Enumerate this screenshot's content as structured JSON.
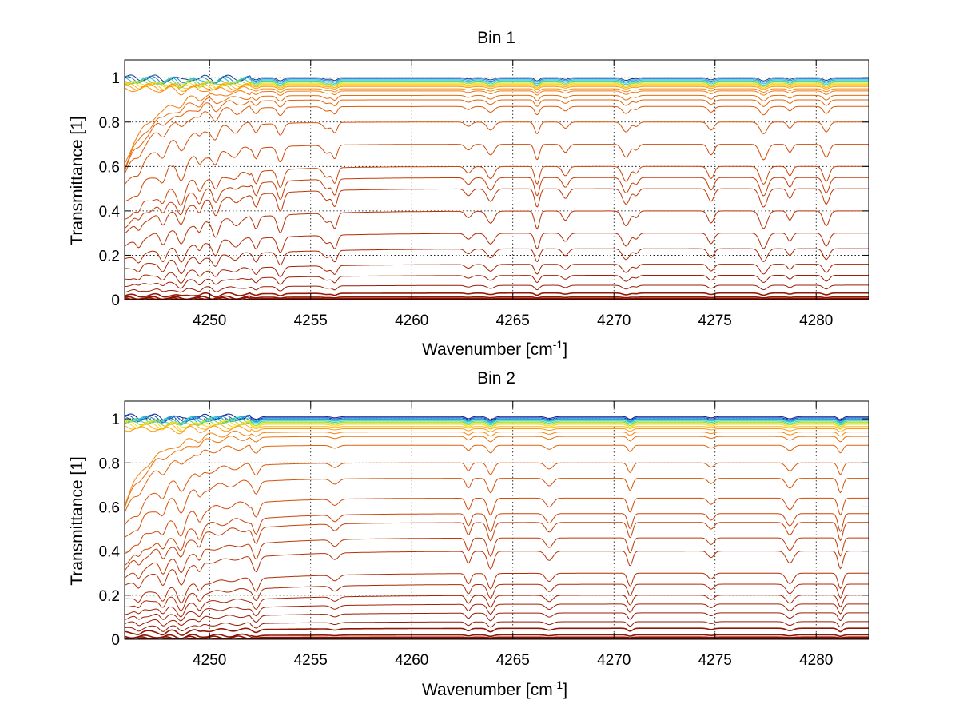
{
  "chart_data": [
    {
      "type": "line",
      "title": "Bin 1",
      "xlabel": "Wavenumber [cm",
      "xlabel_sup": "-1",
      "xlabel_close": "]",
      "ylabel": "Transmittance [1]",
      "xlim": [
        4245.8,
        4282.6
      ],
      "ylim": [
        0,
        1.08
      ],
      "xticks": [
        4250,
        4255,
        4260,
        4265,
        4270,
        4275,
        4280
      ],
      "xtick_labels": [
        "4250",
        "4255",
        "4260",
        "4265",
        "4270",
        "4275",
        "4280"
      ],
      "yticks": [
        0,
        0.2,
        0.4,
        0.6,
        0.8,
        1
      ],
      "ytick_labels": [
        "0",
        "0.2",
        "0.4",
        "0.6",
        "0.8",
        "1"
      ],
      "grid": true,
      "legend": "none",
      "absorption_lines": [
        4246.5,
        4247.7,
        4248.6,
        4249.5,
        4250.3,
        4251.3,
        4252.3,
        4253.5,
        4255.8,
        4256.2,
        4262.8,
        4263.9,
        4266.2,
        4267.6,
        4270.6,
        4271.1,
        4274.8,
        4277.4,
        4278.7,
        4280.5
      ],
      "series_final_transmittance": [
        1.0,
        0.995,
        0.99,
        0.985,
        0.98,
        0.975,
        0.97,
        0.965,
        0.96,
        0.95,
        0.94,
        0.92,
        0.9,
        0.87,
        0.8,
        0.7,
        0.6,
        0.55,
        0.5,
        0.4,
        0.3,
        0.23,
        0.16,
        0.11,
        0.065,
        0.03,
        0.012,
        0.005,
        0.0
      ],
      "series_colors": [
        "#0b3c8c",
        "#1f7fd4",
        "#21b7d6",
        "#3ccf9a",
        "#8fdc3a",
        "#e6e61a",
        "#ffd21a",
        "#ffb31a",
        "#ff9a14",
        "#f78a12",
        "#ef7a10",
        "#e86c0e",
        "#e2640c",
        "#dc5a0b",
        "#d6520a",
        "#d04a09",
        "#ca4408",
        "#c43e08",
        "#be3807",
        "#b83207",
        "#b22d06",
        "#ac2806",
        "#a62405",
        "#a02005",
        "#9a1c05",
        "#961904",
        "#921604",
        "#8e1404",
        "#8a1204"
      ]
    },
    {
      "type": "line",
      "title": "Bin 2",
      "xlabel": "Wavenumber [cm",
      "xlabel_sup": "-1",
      "xlabel_close": "]",
      "ylabel": "Transmittance [1]",
      "xlim": [
        4245.8,
        4282.6
      ],
      "ylim": [
        0,
        1.08
      ],
      "xticks": [
        4250,
        4255,
        4260,
        4265,
        4270,
        4275,
        4280
      ],
      "xtick_labels": [
        "4250",
        "4255",
        "4260",
        "4265",
        "4270",
        "4275",
        "4280"
      ],
      "yticks": [
        0,
        0.2,
        0.4,
        0.6,
        0.8,
        1
      ],
      "ytick_labels": [
        "0",
        "0.2",
        "0.4",
        "0.6",
        "0.8",
        "1"
      ],
      "grid": true,
      "legend": "none",
      "absorption_lines": [
        4246.5,
        4247.7,
        4248.6,
        4249.5,
        4252.3,
        4256.2,
        4262.8,
        4263.9,
        4266.8,
        4270.8,
        4274.8,
        4278.7,
        4281.2
      ],
      "series_final_transmittance": [
        1.01,
        1.005,
        1.0,
        0.998,
        0.995,
        0.99,
        0.985,
        0.98,
        0.975,
        0.965,
        0.955,
        0.94,
        0.92,
        0.88,
        0.8,
        0.73,
        0.64,
        0.57,
        0.53,
        0.46,
        0.4,
        0.3,
        0.25,
        0.2,
        0.16,
        0.12,
        0.08,
        0.05,
        0.02,
        0.01,
        0.0
      ],
      "series_colors": [
        "#0b1f8c",
        "#1246c8",
        "#1f7fd4",
        "#21b7d6",
        "#2fd0c0",
        "#3ccf9a",
        "#8fdc3a",
        "#e6e61a",
        "#ffd21a",
        "#ffb31a",
        "#ff9a14",
        "#f28510",
        "#ea720e",
        "#e2640c",
        "#dc5a0b",
        "#d6520a",
        "#d04a09",
        "#ca4408",
        "#c43e08",
        "#be3807",
        "#b83207",
        "#b22d06",
        "#ac2806",
        "#a62405",
        "#a02005",
        "#9a1c05",
        "#961904",
        "#921604",
        "#8e1404",
        "#8a1204",
        "#861004"
      ]
    }
  ]
}
